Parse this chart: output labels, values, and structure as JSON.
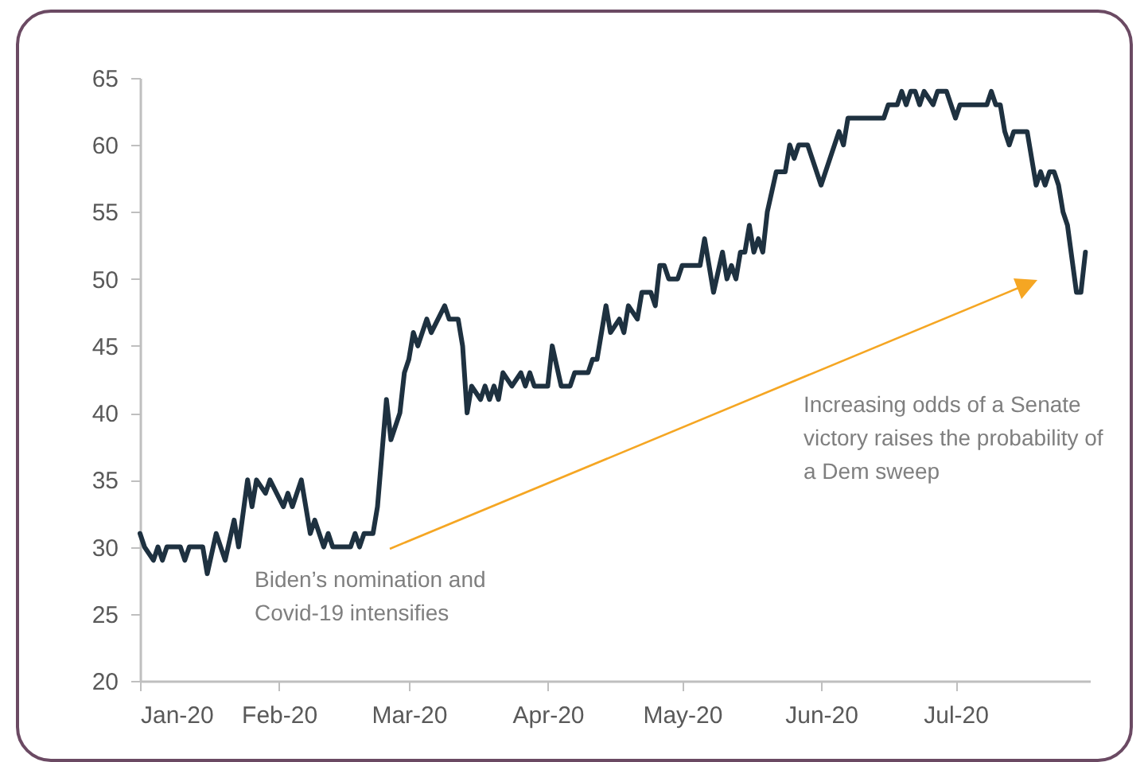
{
  "chart_data": {
    "type": "line",
    "annotations": [
      "Biden’s nomination and Covid-19 intensifies",
      "Increasing odds of a Senate victory raises the probability of a Dem sweep"
    ],
    "xlim": [
      "2020-01-01",
      "2020-07-31"
    ],
    "xticks": [
      {
        "value": "2020-01-01",
        "label": "Jan-20"
      },
      {
        "value": "2020-02-01",
        "label": "Feb-20"
      },
      {
        "value": "2020-03-01",
        "label": "Mar-20"
      },
      {
        "value": "2020-04-01",
        "label": "Apr-20"
      },
      {
        "value": "2020-05-01",
        "label": "May-20"
      },
      {
        "value": "2020-06-01",
        "label": "Jun-20"
      },
      {
        "value": "2020-07-01",
        "label": "Jul-20"
      }
    ],
    "ylim": [
      20,
      65
    ],
    "yticks": [
      20,
      25,
      30,
      35,
      40,
      45,
      50,
      55,
      60,
      65
    ],
    "grid": false,
    "marker": "none",
    "line_style": "solid",
    "x": [
      "2020-01-01",
      "2020-01-02",
      "2020-01-04",
      "2020-01-05",
      "2020-01-06",
      "2020-01-07",
      "2020-01-10",
      "2020-01-11",
      "2020-01-12",
      "2020-01-15",
      "2020-01-16",
      "2020-01-18",
      "2020-01-20",
      "2020-01-22",
      "2020-01-23",
      "2020-01-25",
      "2020-01-26",
      "2020-01-27",
      "2020-01-29",
      "2020-01-30",
      "2020-02-02",
      "2020-02-03",
      "2020-02-04",
      "2020-02-06",
      "2020-02-07",
      "2020-02-08",
      "2020-02-09",
      "2020-02-11",
      "2020-02-12",
      "2020-02-13",
      "2020-02-17",
      "2020-02-18",
      "2020-02-19",
      "2020-02-20",
      "2020-02-22",
      "2020-02-23",
      "2020-02-25",
      "2020-02-26",
      "2020-02-28",
      "2020-02-29",
      "2020-03-01",
      "2020-03-02",
      "2020-03-03",
      "2020-03-05",
      "2020-03-06",
      "2020-03-09",
      "2020-03-10",
      "2020-03-12",
      "2020-03-13",
      "2020-03-14",
      "2020-03-15",
      "2020-03-17",
      "2020-03-18",
      "2020-03-19",
      "2020-03-20",
      "2020-03-21",
      "2020-03-22",
      "2020-03-24",
      "2020-03-26",
      "2020-03-27",
      "2020-03-28",
      "2020-03-29",
      "2020-04-01",
      "2020-04-02",
      "2020-04-04",
      "2020-04-06",
      "2020-04-07",
      "2020-04-10",
      "2020-04-11",
      "2020-04-12",
      "2020-04-14",
      "2020-04-15",
      "2020-04-17",
      "2020-04-18",
      "2020-04-19",
      "2020-04-21",
      "2020-04-22",
      "2020-04-24",
      "2020-04-25",
      "2020-04-26",
      "2020-04-27",
      "2020-04-28",
      "2020-04-30",
      "2020-05-01",
      "2020-05-05",
      "2020-05-06",
      "2020-05-07",
      "2020-05-08",
      "2020-05-10",
      "2020-05-11",
      "2020-05-12",
      "2020-05-13",
      "2020-05-14",
      "2020-05-15",
      "2020-05-16",
      "2020-05-17",
      "2020-05-18",
      "2020-05-19",
      "2020-05-20",
      "2020-05-22",
      "2020-05-24",
      "2020-05-25",
      "2020-05-26",
      "2020-05-27",
      "2020-05-29",
      "2020-05-30",
      "2020-06-01",
      "2020-06-05",
      "2020-06-06",
      "2020-06-07",
      "2020-06-15",
      "2020-06-16",
      "2020-06-18",
      "2020-06-19",
      "2020-06-20",
      "2020-06-21",
      "2020-06-22",
      "2020-06-23",
      "2020-06-24",
      "2020-06-26",
      "2020-06-27",
      "2020-06-29",
      "2020-07-01",
      "2020-07-02",
      "2020-07-08",
      "2020-07-09",
      "2020-07-10",
      "2020-07-11",
      "2020-07-12",
      "2020-07-13",
      "2020-07-14",
      "2020-07-15",
      "2020-07-17",
      "2020-07-19",
      "2020-07-20",
      "2020-07-21",
      "2020-07-22",
      "2020-07-23",
      "2020-07-24",
      "2020-07-25",
      "2020-07-26",
      "2020-07-28",
      "2020-07-29",
      "2020-07-30"
    ],
    "series": [
      {
        "color": "#1e3140",
        "values": [
          31,
          30,
          29,
          30,
          29,
          30,
          30,
          29,
          30,
          30,
          28,
          31,
          29,
          32,
          30,
          35,
          33,
          35,
          34,
          35,
          33,
          34,
          33,
          35,
          33,
          31,
          32,
          30,
          31,
          30,
          30,
          31,
          30,
          31,
          31,
          33,
          41,
          38,
          40,
          43,
          44,
          46,
          45,
          47,
          46,
          48,
          47,
          47,
          45,
          40,
          42,
          41,
          42,
          41,
          42,
          41,
          43,
          42,
          43,
          42,
          43,
          42,
          42,
          45,
          42,
          42,
          43,
          43,
          44,
          44,
          48,
          46,
          47,
          46,
          48,
          47,
          49,
          49,
          48,
          51,
          51,
          50,
          50,
          51,
          51,
          53,
          51,
          49,
          52,
          50,
          51,
          50,
          52,
          52,
          54,
          52,
          53,
          52,
          55,
          58,
          58,
          60,
          59,
          60,
          60,
          59,
          57,
          61,
          60,
          62,
          62,
          63,
          63,
          64,
          63,
          64,
          64,
          63,
          64,
          63,
          64,
          64,
          62,
          63,
          63,
          64,
          63,
          63,
          61,
          60,
          61,
          61,
          61,
          57,
          58,
          57,
          58,
          58,
          57,
          55,
          54,
          49,
          49,
          52
        ]
      }
    ]
  }
}
